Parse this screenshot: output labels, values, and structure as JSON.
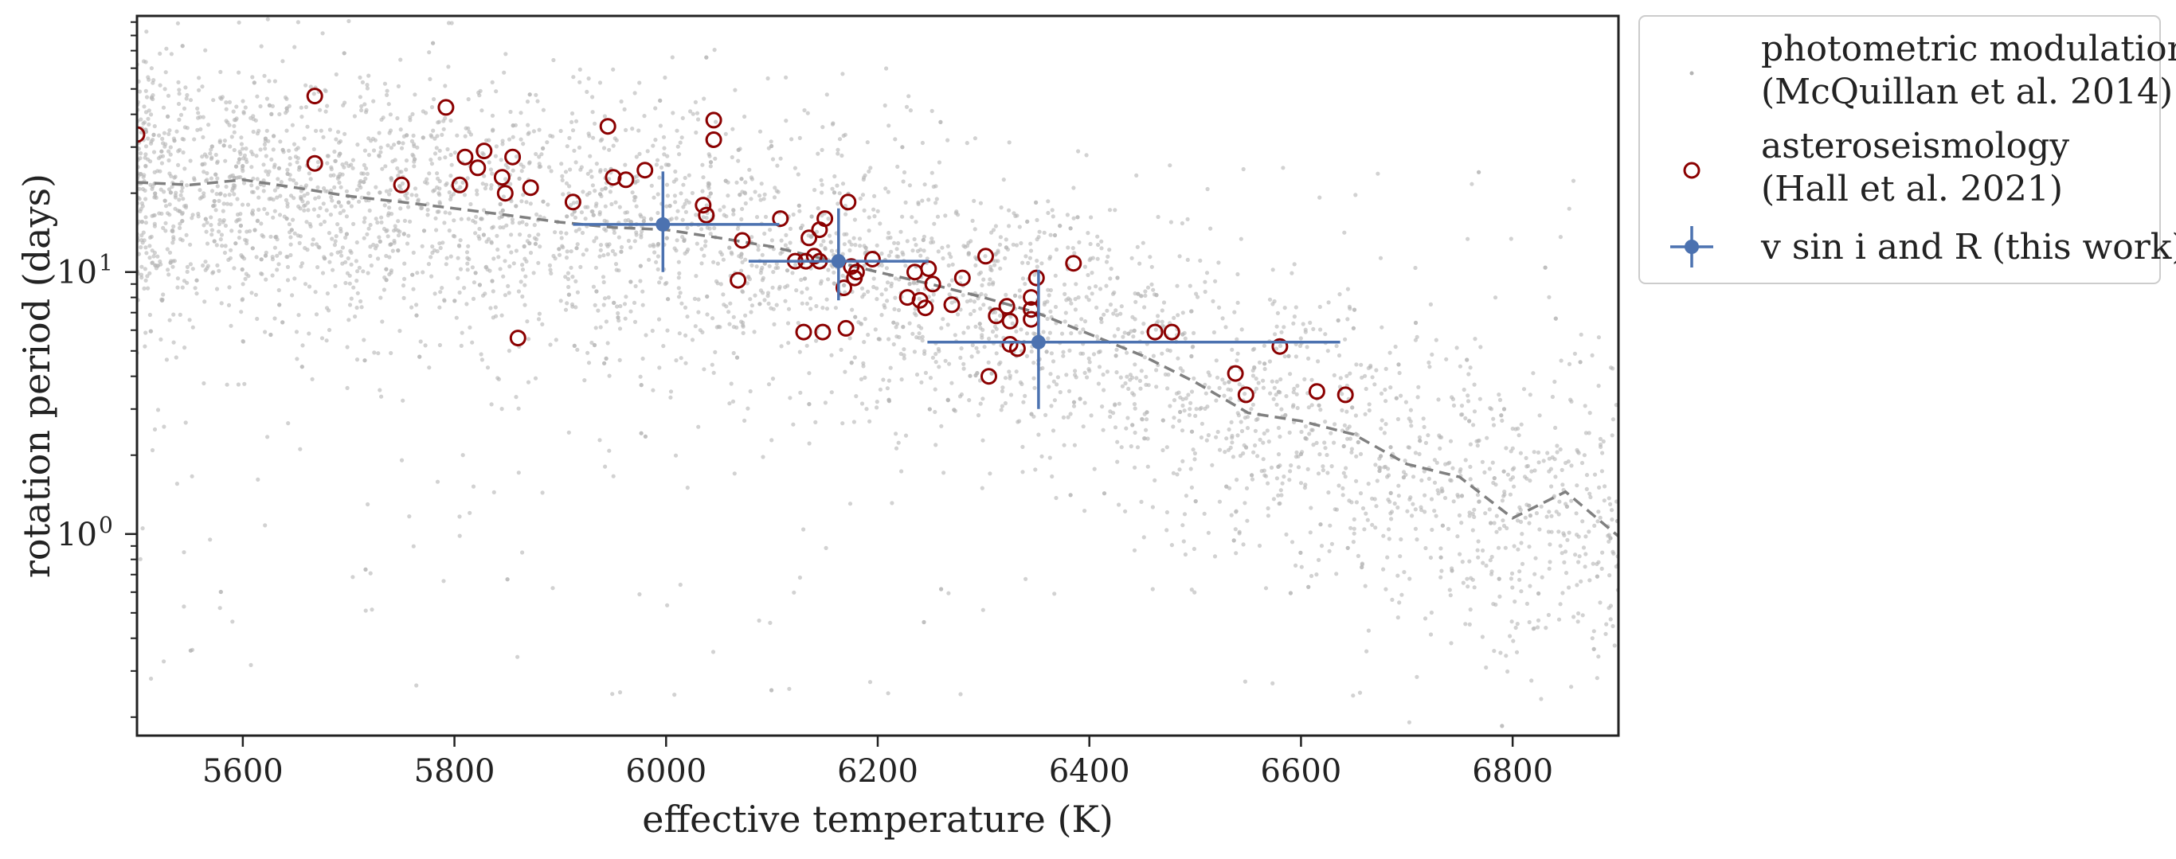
{
  "chart_data": {
    "type": "scatter",
    "title": "",
    "xlabel": "effective temperature (K)",
    "ylabel": "rotation period (days)",
    "xlim": [
      5500,
      6900
    ],
    "ylim": [
      0.17,
      95
    ],
    "yscale": "log",
    "x_ticks": [
      5600,
      5800,
      6000,
      6200,
      6400,
      6600,
      6800
    ],
    "y_ticks": [
      {
        "value": 1,
        "label": "10",
        "exp": "0"
      },
      {
        "value": 10,
        "label": "10",
        "exp": "1"
      }
    ],
    "legend": {
      "position": "outside-top-right",
      "entries": [
        {
          "line1": "photometric modulation",
          "line2": "(McQuillan et al. 2014)"
        },
        {
          "line1": "asteroseismology",
          "line2": "(Hall et al. 2021)"
        },
        {
          "line1": "v sin i and R (this work)",
          "line2": ""
        }
      ]
    },
    "colors": {
      "background_points": "#b4b4b4",
      "asteroseismology": "#8b0000",
      "this_work": "#4c72b0",
      "trend_line": "#808080",
      "axes": "#222222"
    },
    "series": [
      {
        "name": "photometric modulation (McQuillan et al. 2014)",
        "kind": "cloud",
        "description": "dense cloud of ~thousands of stars following the trend line, scatter ~0.3 dex with sparse outliers",
        "n_points": 4200
      },
      {
        "name": "trend (median rotation period)",
        "kind": "dashed-line",
        "points": [
          [
            5500,
            22
          ],
          [
            5550,
            21.5
          ],
          [
            5600,
            22.5
          ],
          [
            5650,
            21
          ],
          [
            5700,
            19.5
          ],
          [
            5750,
            18.5
          ],
          [
            5800,
            17.5
          ],
          [
            5850,
            16.5
          ],
          [
            5900,
            15.5
          ],
          [
            5950,
            14.8
          ],
          [
            6000,
            14.5
          ],
          [
            6050,
            13.5
          ],
          [
            6100,
            12.5
          ],
          [
            6150,
            11.2
          ],
          [
            6200,
            10.0
          ],
          [
            6250,
            9.0
          ],
          [
            6300,
            8.0
          ],
          [
            6350,
            7.0
          ],
          [
            6400,
            5.8
          ],
          [
            6450,
            4.8
          ],
          [
            6500,
            3.8
          ],
          [
            6550,
            2.9
          ],
          [
            6600,
            2.7
          ],
          [
            6650,
            2.4
          ],
          [
            6700,
            1.85
          ],
          [
            6750,
            1.65
          ],
          [
            6800,
            1.15
          ],
          [
            6850,
            1.45
          ],
          [
            6900,
            0.98
          ]
        ]
      },
      {
        "name": "asteroseismology (Hall et al. 2021)",
        "kind": "open-circle",
        "points": [
          [
            5500,
            33.5
          ],
          [
            5668,
            47
          ],
          [
            5668,
            26
          ],
          [
            5750,
            21.5
          ],
          [
            5792,
            42.5
          ],
          [
            5805,
            21.5
          ],
          [
            5810,
            27.5
          ],
          [
            5822,
            25
          ],
          [
            5828,
            29
          ],
          [
            5845,
            23
          ],
          [
            5848,
            20
          ],
          [
            5855,
            27.5
          ],
          [
            5860,
            5.6
          ],
          [
            5872,
            21
          ],
          [
            5912,
            18.5
          ],
          [
            5945,
            36
          ],
          [
            5950,
            23
          ],
          [
            5962,
            22.5
          ],
          [
            5980,
            24.5
          ],
          [
            6035,
            18
          ],
          [
            6038,
            16.5
          ],
          [
            6045,
            38
          ],
          [
            6045,
            32
          ],
          [
            6068,
            9.3
          ],
          [
            6072,
            13.2
          ],
          [
            6108,
            16
          ],
          [
            6122,
            11
          ],
          [
            6130,
            5.9
          ],
          [
            6132,
            11
          ],
          [
            6135,
            13.5
          ],
          [
            6140,
            11.5
          ],
          [
            6145,
            14.5
          ],
          [
            6145,
            11
          ],
          [
            6148,
            5.9
          ],
          [
            6150,
            16
          ],
          [
            6168,
            8.7
          ],
          [
            6170,
            6.1
          ],
          [
            6172,
            18.5
          ],
          [
            6175,
            10.5
          ],
          [
            6178,
            9.5
          ],
          [
            6180,
            10
          ],
          [
            6195,
            11.2
          ],
          [
            6228,
            8
          ],
          [
            6235,
            10
          ],
          [
            6240,
            7.8
          ],
          [
            6245,
            7.3
          ],
          [
            6248,
            10.3
          ],
          [
            6252,
            9
          ],
          [
            6270,
            7.5
          ],
          [
            6280,
            9.5
          ],
          [
            6302,
            11.5
          ],
          [
            6305,
            4
          ],
          [
            6312,
            6.8
          ],
          [
            6322,
            7.4
          ],
          [
            6325,
            5.3
          ],
          [
            6325,
            6.5
          ],
          [
            6332,
            5.1
          ],
          [
            6345,
            6.6
          ],
          [
            6345,
            7.2
          ],
          [
            6345,
            8
          ],
          [
            6350,
            9.5
          ],
          [
            6385,
            10.8
          ],
          [
            6462,
            5.9
          ],
          [
            6478,
            5.9
          ],
          [
            6538,
            4.1
          ],
          [
            6548,
            3.4
          ],
          [
            6580,
            5.2
          ],
          [
            6615,
            3.5
          ],
          [
            6642,
            3.4
          ]
        ]
      },
      {
        "name": "v sin i and R (this work)",
        "kind": "errorbar",
        "points": [
          {
            "x": 5997,
            "y": 15.2,
            "xerr": [
              85,
              110
            ],
            "yerr": [
              5.2,
              9.0
            ]
          },
          {
            "x": 6163,
            "y": 11.0,
            "xerr": [
              85,
              85
            ],
            "yerr": [
              3.2,
              6.5
            ]
          },
          {
            "x": 6352,
            "y": 5.4,
            "xerr": [
              105,
              285
            ],
            "yerr": [
              2.4,
              4.8
            ]
          }
        ]
      }
    ]
  }
}
